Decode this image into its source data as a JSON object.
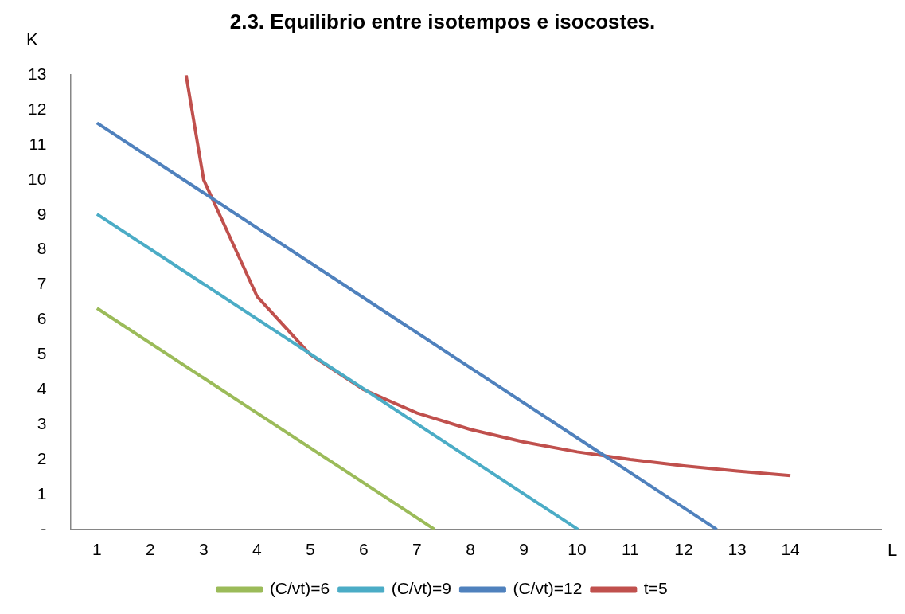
{
  "chart_data": {
    "type": "line",
    "title": "2.3. Equilibrio entre isotempos e isocostes.",
    "xlabel": "L",
    "ylabel": "K",
    "xlim": [
      0.5,
      15.7
    ],
    "xticks": [
      1,
      2,
      3,
      4,
      5,
      6,
      7,
      8,
      9,
      10,
      11,
      12,
      13,
      14
    ],
    "ylim": [
      0,
      13
    ],
    "yticks": [
      {
        "value": 0,
        "label": "-"
      },
      1,
      2,
      3,
      4,
      5,
      6,
      7,
      8,
      9,
      10,
      11,
      12,
      13
    ],
    "grid": false,
    "legend": "bottom",
    "marker": "none",
    "line_style": "solid",
    "series": [
      {
        "name": "(C/vt)=6",
        "color": "#9bbb59",
        "x": [
          1,
          7.33
        ],
        "values": [
          6.33,
          0
        ]
      },
      {
        "name": "(C/vt)=9",
        "color": "#4bacc6",
        "x": [
          1,
          10.02
        ],
        "values": [
          9.02,
          0
        ]
      },
      {
        "name": "(C/vt)=12",
        "color": "#4f81bd",
        "x": [
          1,
          12.62
        ],
        "values": [
          11.63,
          0
        ]
      },
      {
        "name": "t=5",
        "color": "#c0504d",
        "x": [
          2.67,
          3,
          4,
          5,
          6,
          7,
          8,
          9,
          10,
          11,
          12,
          13,
          14
        ],
        "values": [
          13,
          10,
          6.67,
          5,
          4,
          3.33,
          2.86,
          2.5,
          2.22,
          2,
          1.82,
          1.67,
          1.54
        ]
      }
    ]
  }
}
